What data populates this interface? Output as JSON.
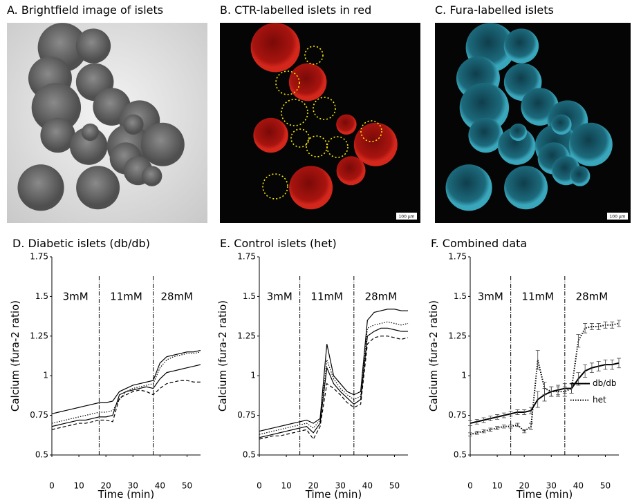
{
  "images": [
    {
      "title": "A. Brightfield image of islets"
    },
    {
      "title": "B. CTR-labelled islets in red",
      "scale_label": "100 µm"
    },
    {
      "title": "C. Fura-labelled islets",
      "scale_label": "100 µm"
    }
  ],
  "chart_data": [
    {
      "type": "line",
      "title": "D. Diabetic islets (db/db)",
      "x_label": "Time (min)",
      "y_label": "Calcium (fura-2 ratio)",
      "xlim": [
        0,
        55
      ],
      "xticks": [
        0,
        10,
        20,
        30,
        40,
        50
      ],
      "ylim": [
        0.5,
        1.75
      ],
      "yticks": [
        0.5,
        0.75,
        1,
        1.25,
        1.5,
        1.75
      ],
      "vlines": [
        17.5,
        37.5
      ],
      "annotations": [
        "3mM",
        "11mM",
        "28mM"
      ],
      "x": [
        0,
        2.5,
        5,
        7.5,
        10,
        12.5,
        15,
        17.5,
        20,
        22.5,
        25,
        27.5,
        30,
        32.5,
        35,
        37.5,
        40,
        42.5,
        45,
        47.5,
        50,
        52.5,
        55
      ],
      "series": [
        {
          "color": "#000000",
          "dash": "solid",
          "values": [
            0.76,
            0.77,
            0.78,
            0.79,
            0.8,
            0.81,
            0.82,
            0.83,
            0.83,
            0.84,
            0.9,
            0.92,
            0.94,
            0.95,
            0.96,
            0.97,
            1.08,
            1.12,
            1.13,
            1.14,
            1.15,
            1.15,
            1.16
          ]
        },
        {
          "color": "#000000",
          "dash": "dotted",
          "values": [
            0.7,
            0.71,
            0.72,
            0.73,
            0.74,
            0.75,
            0.76,
            0.77,
            0.77,
            0.78,
            0.85,
            0.9,
            0.92,
            0.93,
            0.94,
            0.95,
            1.05,
            1.1,
            1.12,
            1.13,
            1.14,
            1.14,
            1.15
          ]
        },
        {
          "color": "#000000",
          "dash": "solid",
          "values": [
            0.68,
            0.69,
            0.7,
            0.71,
            0.72,
            0.72,
            0.73,
            0.74,
            0.74,
            0.75,
            0.88,
            0.9,
            0.91,
            0.92,
            0.93,
            0.92,
            0.98,
            1.02,
            1.03,
            1.04,
            1.05,
            1.06,
            1.07
          ]
        },
        {
          "color": "#000000",
          "dash": "dashed",
          "values": [
            0.66,
            0.67,
            0.68,
            0.69,
            0.7,
            0.7,
            0.71,
            0.72,
            0.72,
            0.71,
            0.86,
            0.88,
            0.9,
            0.91,
            0.9,
            0.88,
            0.92,
            0.95,
            0.96,
            0.97,
            0.97,
            0.96,
            0.96
          ]
        }
      ]
    },
    {
      "type": "line",
      "title": "E. Control islets (het)",
      "x_label": "Time (min)",
      "y_label": "Calcium (fura-2 ratio)",
      "xlim": [
        0,
        55
      ],
      "xticks": [
        0,
        10,
        20,
        30,
        40,
        50
      ],
      "ylim": [
        0.5,
        1.75
      ],
      "yticks": [
        0.5,
        0.75,
        1,
        1.25,
        1.5,
        1.75
      ],
      "vlines": [
        15,
        35
      ],
      "annotations": [
        "3mM",
        "11mM",
        "28mM"
      ],
      "x": [
        0,
        2.5,
        5,
        7.5,
        10,
        12.5,
        15,
        17.5,
        20,
        22.5,
        25,
        27.5,
        30,
        32.5,
        35,
        37.5,
        40,
        42.5,
        45,
        47.5,
        50,
        52.5,
        55
      ],
      "series": [
        {
          "color": "#000000",
          "dash": "solid",
          "values": [
            0.65,
            0.66,
            0.67,
            0.68,
            0.69,
            0.7,
            0.71,
            0.72,
            0.7,
            0.73,
            1.2,
            1.0,
            0.95,
            0.9,
            0.88,
            0.9,
            1.35,
            1.4,
            1.41,
            1.42,
            1.42,
            1.41,
            1.41
          ]
        },
        {
          "color": "#000000",
          "dash": "dotted",
          "values": [
            0.63,
            0.64,
            0.65,
            0.66,
            0.67,
            0.68,
            0.69,
            0.7,
            0.67,
            0.72,
            1.1,
            0.98,
            0.92,
            0.88,
            0.85,
            0.87,
            1.3,
            1.32,
            1.33,
            1.34,
            1.33,
            1.32,
            1.33
          ]
        },
        {
          "color": "#000000",
          "dash": "solid",
          "values": [
            0.61,
            0.62,
            0.63,
            0.64,
            0.65,
            0.66,
            0.67,
            0.68,
            0.64,
            0.7,
            1.05,
            0.95,
            0.9,
            0.86,
            0.82,
            0.85,
            1.25,
            1.28,
            1.3,
            1.3,
            1.29,
            1.28,
            1.28
          ]
        },
        {
          "color": "#000000",
          "dash": "dashed",
          "values": [
            0.6,
            0.61,
            0.62,
            0.62,
            0.63,
            0.64,
            0.65,
            0.66,
            0.6,
            0.68,
            0.95,
            0.92,
            0.88,
            0.83,
            0.8,
            0.82,
            1.2,
            1.24,
            1.25,
            1.25,
            1.24,
            1.23,
            1.24
          ]
        }
      ]
    },
    {
      "type": "line",
      "title": "F. Combined data",
      "x_label": "Time (min)",
      "y_label": "Calcium (fura-2 ratio)",
      "xlim": [
        0,
        55
      ],
      "xticks": [
        0,
        10,
        20,
        30,
        40,
        50
      ],
      "ylim": [
        0.5,
        1.75
      ],
      "yticks": [
        0.5,
        0.75,
        1,
        1.25,
        1.5,
        1.75
      ],
      "vlines": [
        15,
        35
      ],
      "annotations": [
        "3mM",
        "11mM",
        "28mM"
      ],
      "legend": "right",
      "x": [
        0,
        2.5,
        5,
        7.5,
        10,
        12.5,
        15,
        17.5,
        20,
        22.5,
        25,
        27.5,
        30,
        32.5,
        35,
        37.5,
        40,
        42.5,
        45,
        47.5,
        50,
        52.5,
        55
      ],
      "series": [
        {
          "name": "db/db",
          "color": "#000000",
          "dash": "solid",
          "values": [
            0.7,
            0.71,
            0.72,
            0.73,
            0.74,
            0.75,
            0.76,
            0.77,
            0.77,
            0.78,
            0.85,
            0.88,
            0.9,
            0.91,
            0.92,
            0.92,
            0.98,
            1.03,
            1.05,
            1.06,
            1.07,
            1.07,
            1.08
          ],
          "errors": [
            0.015,
            0.015,
            0.015,
            0.015,
            0.015,
            0.015,
            0.015,
            0.015,
            0.015,
            0.02,
            0.05,
            0.04,
            0.03,
            0.03,
            0.03,
            0.03,
            0.04,
            0.04,
            0.03,
            0.03,
            0.03,
            0.03,
            0.03
          ]
        },
        {
          "name": "het",
          "color": "#000000",
          "dash": "dotted",
          "values": [
            0.63,
            0.64,
            0.65,
            0.66,
            0.67,
            0.68,
            0.68,
            0.69,
            0.65,
            0.68,
            1.1,
            0.92,
            0.9,
            0.9,
            0.9,
            0.92,
            1.22,
            1.3,
            1.31,
            1.31,
            1.32,
            1.32,
            1.33
          ],
          "errors": [
            0.01,
            0.01,
            0.01,
            0.01,
            0.01,
            0.01,
            0.01,
            0.01,
            0.01,
            0.02,
            0.06,
            0.04,
            0.03,
            0.03,
            0.03,
            0.03,
            0.04,
            0.03,
            0.02,
            0.02,
            0.02,
            0.02,
            0.02
          ]
        }
      ]
    }
  ]
}
